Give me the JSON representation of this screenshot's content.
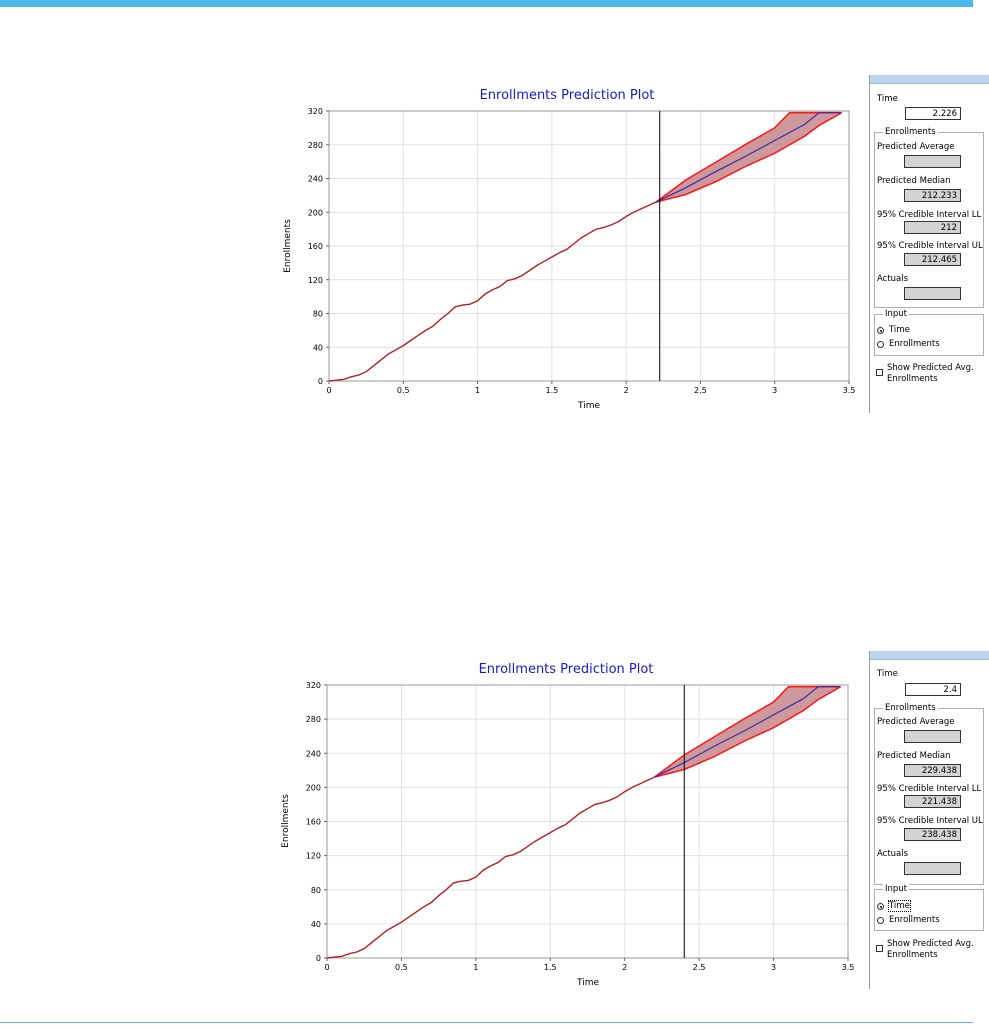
{
  "colors": {
    "band_fill": "#c98e92",
    "band_edge": "#ff1a1a",
    "actual_line": "#b22222",
    "median_line": "#3a2aa8",
    "grid": "#e2e2e2"
  },
  "chart_data": [
    {
      "type": "line",
      "title": "Enrollments Prediction Plot",
      "xlabel": "Time",
      "ylabel": "Enrollments",
      "xlim": [
        0,
        3.5
      ],
      "ylim": [
        0,
        320
      ],
      "x_ticks": [
        "0",
        "0.5",
        "1",
        "1.5",
        "2",
        "2.5",
        "3",
        "3.5"
      ],
      "y_ticks": [
        "0",
        "40",
        "80",
        "120",
        "160",
        "200",
        "240",
        "280",
        "320"
      ],
      "grid": true,
      "cursor_time": 2.226,
      "actuals": [
        [
          0,
          0
        ],
        [
          0.05,
          1
        ],
        [
          0.1,
          2
        ],
        [
          0.15,
          5
        ],
        [
          0.2,
          7
        ],
        [
          0.25,
          11
        ],
        [
          0.3,
          18
        ],
        [
          0.35,
          25
        ],
        [
          0.4,
          32
        ],
        [
          0.45,
          37
        ],
        [
          0.5,
          42
        ],
        [
          0.55,
          48
        ],
        [
          0.6,
          54
        ],
        [
          0.65,
          60
        ],
        [
          0.7,
          65
        ],
        [
          0.75,
          73
        ],
        [
          0.8,
          80
        ],
        [
          0.85,
          88
        ],
        [
          0.9,
          90
        ],
        [
          0.95,
          91
        ],
        [
          1.0,
          95
        ],
        [
          1.05,
          103
        ],
        [
          1.1,
          108
        ],
        [
          1.15,
          112
        ],
        [
          1.2,
          119
        ],
        [
          1.25,
          121
        ],
        [
          1.3,
          125
        ],
        [
          1.35,
          131
        ],
        [
          1.4,
          137
        ],
        [
          1.45,
          142
        ],
        [
          1.5,
          147
        ],
        [
          1.55,
          152
        ],
        [
          1.6,
          156
        ],
        [
          1.65,
          163
        ],
        [
          1.7,
          170
        ],
        [
          1.75,
          175
        ],
        [
          1.8,
          180
        ],
        [
          1.85,
          182
        ],
        [
          1.9,
          185
        ],
        [
          1.95,
          189
        ],
        [
          2.0,
          195
        ],
        [
          2.05,
          200
        ],
        [
          2.1,
          204
        ],
        [
          2.15,
          208
        ],
        [
          2.2,
          212
        ]
      ],
      "median": [
        [
          2.2,
          212
        ],
        [
          2.4,
          229
        ],
        [
          2.6,
          248
        ],
        [
          2.8,
          266
        ],
        [
          3.0,
          285
        ],
        [
          3.2,
          304
        ],
        [
          3.3,
          318
        ],
        [
          3.45,
          318
        ]
      ],
      "band_upper": [
        [
          2.2,
          212
        ],
        [
          2.4,
          238
        ],
        [
          2.6,
          259
        ],
        [
          2.8,
          280
        ],
        [
          3.0,
          300
        ],
        [
          3.1,
          318
        ],
        [
          3.45,
          318
        ]
      ],
      "band_lower": [
        [
          2.2,
          212
        ],
        [
          2.4,
          221
        ],
        [
          2.6,
          236
        ],
        [
          2.8,
          254
        ],
        [
          3.0,
          270
        ],
        [
          3.2,
          290
        ],
        [
          3.3,
          303
        ],
        [
          3.45,
          318
        ]
      ]
    },
    {
      "type": "line",
      "title": "Enrollments Prediction Plot",
      "xlabel": "Time",
      "ylabel": "Enrollments",
      "xlim": [
        0,
        3.5
      ],
      "ylim": [
        0,
        320
      ],
      "x_ticks": [
        "0",
        "0.5",
        "1",
        "1.5",
        "2",
        "2.5",
        "3",
        "3.5"
      ],
      "y_ticks": [
        "0",
        "40",
        "80",
        "120",
        "160",
        "200",
        "240",
        "280",
        "320"
      ],
      "grid": true,
      "cursor_time": 2.4,
      "actuals": [
        [
          0,
          0
        ],
        [
          0.05,
          1
        ],
        [
          0.1,
          2
        ],
        [
          0.15,
          5
        ],
        [
          0.2,
          7
        ],
        [
          0.25,
          11
        ],
        [
          0.3,
          18
        ],
        [
          0.35,
          25
        ],
        [
          0.4,
          32
        ],
        [
          0.45,
          37
        ],
        [
          0.5,
          42
        ],
        [
          0.55,
          48
        ],
        [
          0.6,
          54
        ],
        [
          0.65,
          60
        ],
        [
          0.7,
          65
        ],
        [
          0.75,
          73
        ],
        [
          0.8,
          80
        ],
        [
          0.85,
          88
        ],
        [
          0.9,
          90
        ],
        [
          0.95,
          91
        ],
        [
          1.0,
          95
        ],
        [
          1.05,
          103
        ],
        [
          1.1,
          108
        ],
        [
          1.15,
          112
        ],
        [
          1.2,
          119
        ],
        [
          1.25,
          121
        ],
        [
          1.3,
          125
        ],
        [
          1.35,
          131
        ],
        [
          1.4,
          137
        ],
        [
          1.45,
          142
        ],
        [
          1.5,
          147
        ],
        [
          1.55,
          152
        ],
        [
          1.6,
          156
        ],
        [
          1.65,
          163
        ],
        [
          1.7,
          170
        ],
        [
          1.75,
          175
        ],
        [
          1.8,
          180
        ],
        [
          1.85,
          182
        ],
        [
          1.9,
          185
        ],
        [
          1.95,
          189
        ],
        [
          2.0,
          195
        ],
        [
          2.05,
          200
        ],
        [
          2.1,
          204
        ],
        [
          2.15,
          208
        ],
        [
          2.2,
          212
        ]
      ],
      "median": [
        [
          2.2,
          212
        ],
        [
          2.4,
          229
        ],
        [
          2.6,
          248
        ],
        [
          2.8,
          266
        ],
        [
          3.0,
          285
        ],
        [
          3.2,
          304
        ],
        [
          3.3,
          318
        ],
        [
          3.45,
          318
        ]
      ],
      "band_upper": [
        [
          2.2,
          212
        ],
        [
          2.4,
          238
        ],
        [
          2.6,
          259
        ],
        [
          2.8,
          280
        ],
        [
          3.0,
          300
        ],
        [
          3.1,
          318
        ],
        [
          3.45,
          318
        ]
      ],
      "band_lower": [
        [
          2.2,
          212
        ],
        [
          2.4,
          221
        ],
        [
          2.6,
          236
        ],
        [
          2.8,
          254
        ],
        [
          3.0,
          270
        ],
        [
          3.2,
          290
        ],
        [
          3.3,
          303
        ],
        [
          3.45,
          318
        ]
      ]
    }
  ],
  "panels": [
    {
      "time_label": "Time",
      "time_value": "2.226",
      "enrollments_group": "Enrollments",
      "predicted_average_label": "Predicted Average",
      "predicted_average_value": "",
      "predicted_median_label": "Predicted Median",
      "predicted_median_value": "212.233",
      "ci_ll_label": "95% Credible Interval LL",
      "ci_ll_value": "212",
      "ci_ul_label": "95% Credible Interval UL",
      "ci_ul_value": "212.465",
      "actuals_label": "Actuals",
      "actuals_value": "",
      "input_group": "Input",
      "input_time_label": "Time",
      "input_enrollments_label": "Enrollments",
      "show_avg_line1": "Show Predicted Avg.",
      "show_avg_line2": "Enrollments"
    },
    {
      "time_label": "Time",
      "time_value": "2.4",
      "enrollments_group": "Enrollments",
      "predicted_average_label": "Predicted Average",
      "predicted_average_value": "",
      "predicted_median_label": "Predicted Median",
      "predicted_median_value": "229.438",
      "ci_ll_label": "95% Credible Interval LL",
      "ci_ll_value": "221.438",
      "ci_ul_label": "95% Credible Interval UL",
      "ci_ul_value": "238.438",
      "actuals_label": "Actuals",
      "actuals_value": "",
      "input_group": "Input",
      "input_time_label": "Time",
      "input_enrollments_label": "Enrollments",
      "show_avg_line1": "Show Predicted Avg.",
      "show_avg_line2": "Enrollments"
    }
  ]
}
